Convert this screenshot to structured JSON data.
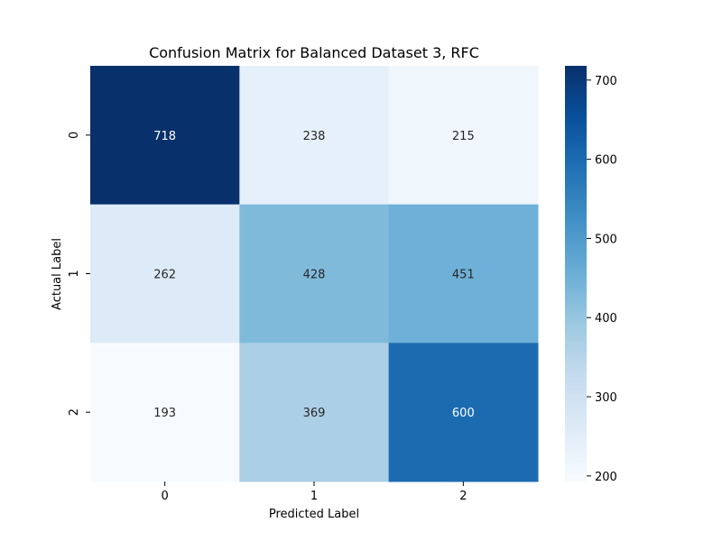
{
  "chart_data": {
    "type": "heatmap",
    "title": "Confusion Matrix for Balanced Dataset 3, RFC",
    "xlabel": "Predicted Label",
    "ylabel": "Actual Label",
    "x_categories": [
      "0",
      "1",
      "2"
    ],
    "y_categories": [
      "0",
      "1",
      "2"
    ],
    "values": [
      [
        718,
        238,
        215
      ],
      [
        262,
        428,
        451
      ],
      [
        193,
        369,
        600
      ]
    ],
    "colormap": "Blues",
    "color_range": [
      193,
      718
    ],
    "colorbar": {
      "ticks": [
        200,
        300,
        400,
        500,
        600,
        700
      ],
      "tick_labels": [
        "200",
        "300",
        "400",
        "500",
        "600",
        "700"
      ]
    },
    "annotations": true,
    "grid": false
  }
}
